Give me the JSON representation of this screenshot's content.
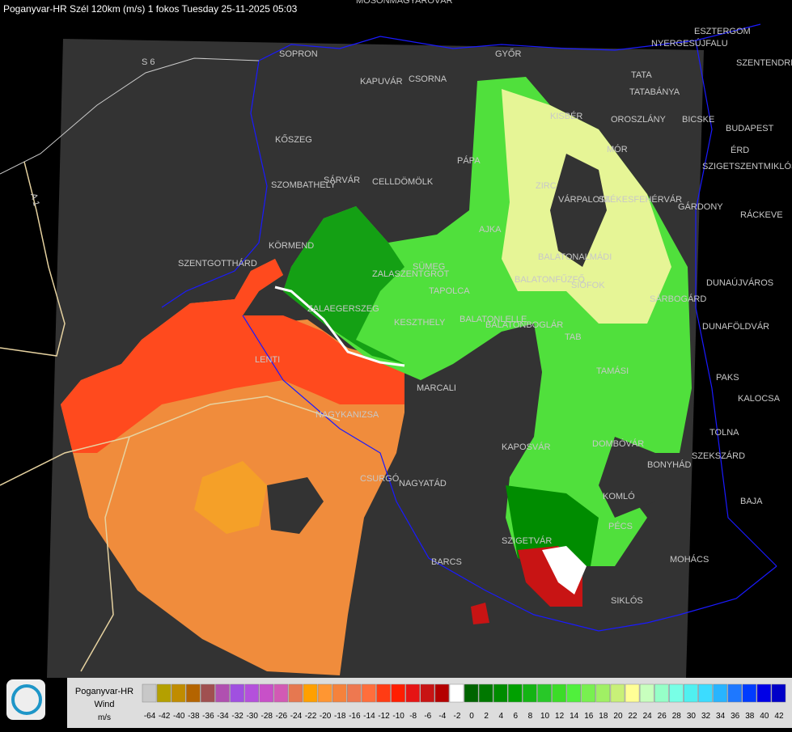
{
  "header": {
    "title": "Poganyvar-HR Szél 120km (m/s) 1 fokos Tuesday 25-11-2025 05:03"
  },
  "roads": [
    "S 6",
    "A 1"
  ],
  "places": [
    "MOSONMAGYARÓVÁR",
    "SOPRON",
    "GYŐR",
    "ESZTERGOM",
    "NYERGESÚJFALU",
    "SZENTENDRE",
    "TATA",
    "TATABÁNYA",
    "KAPUVÁR",
    "CSORNA",
    "KISBÉR",
    "OROSZLÁNY",
    "BICSKE",
    "BUDAPEST",
    "KŐSZEG",
    "MÓR",
    "ÉRD",
    "SZIGETSZENTMIKLÓS",
    "PÁPA",
    "SZOMBATHELY",
    "SÁRVÁR",
    "CELLDÖMÖLK",
    "ZIRC",
    "VÁRPALOTA",
    "SZÉKESFEHÉRVÁR",
    "GÁRDONY",
    "RÁCKEVE",
    "AJKA",
    "KÖRMEND",
    "SZENTGOTTHÁRD",
    "SÜMEG",
    "BALATONALMÁDI",
    "ZALASZENTGRÓT",
    "BALATONFŰZFŐ",
    "SIÓFOK",
    "DUNAÚJVÁROS",
    "TAPOLCA",
    "ZALAEGERSZEG",
    "SÁRBOGÁRD",
    "BALATONLELLE",
    "KESZTHELY",
    "BALATONBOGLÁR",
    "DUNAFÖLDVÁR",
    "TAB",
    "LENTI",
    "TAMÁSI",
    "PAKS",
    "MARCALI",
    "KALOCSA",
    "NAGYKANIZSA",
    "TOLNA",
    "KAPOSVÁR",
    "DOMBÓVÁR",
    "SZEKSZÁRD",
    "BONYHÁD",
    "CSURGÓ",
    "NAGYATÁD",
    "KOMLÓ",
    "BAJA",
    "PÉCS",
    "SZIGETVÁR",
    "MOHÁCS",
    "BARCS",
    "SIKLÓS"
  ],
  "legend": {
    "title": "Poganyvar-HR",
    "label": "Wind",
    "unit": "m/s",
    "items": [
      {
        "value": -64,
        "color": "#c8c8c8"
      },
      {
        "value": -42,
        "color": "#b4a000"
      },
      {
        "value": -40,
        "color": "#c08c00"
      },
      {
        "value": -38,
        "color": "#b46400"
      },
      {
        "value": -36,
        "color": "#a05050"
      },
      {
        "value": -34,
        "color": "#b050b0"
      },
      {
        "value": -32,
        "color": "#a050e0"
      },
      {
        "value": -30,
        "color": "#b450dc"
      },
      {
        "value": -28,
        "color": "#c850c8"
      },
      {
        "value": -26,
        "color": "#d25ab4"
      },
      {
        "value": -24,
        "color": "#e67850"
      },
      {
        "value": -22,
        "color": "#ffa000"
      },
      {
        "value": -20,
        "color": "#ff9632"
      },
      {
        "value": -18,
        "color": "#f5823c"
      },
      {
        "value": -16,
        "color": "#ee7850"
      },
      {
        "value": -14,
        "color": "#ff6e3c"
      },
      {
        "value": -12,
        "color": "#ff3c14"
      },
      {
        "value": -10,
        "color": "#ff1e00"
      },
      {
        "value": -8,
        "color": "#e61414"
      },
      {
        "value": -6,
        "color": "#c81414"
      },
      {
        "value": -4,
        "color": "#b40000"
      },
      {
        "value": -2,
        "color": "#ffffff"
      },
      {
        "value": 0,
        "color": "#006400"
      },
      {
        "value": 2,
        "color": "#007800"
      },
      {
        "value": 4,
        "color": "#008c00"
      },
      {
        "value": 6,
        "color": "#00a000"
      },
      {
        "value": 8,
        "color": "#14b414"
      },
      {
        "value": 10,
        "color": "#28c828"
      },
      {
        "value": 12,
        "color": "#3cdc28"
      },
      {
        "value": 14,
        "color": "#50f03c"
      },
      {
        "value": 16,
        "color": "#78f050"
      },
      {
        "value": 18,
        "color": "#a0f064"
      },
      {
        "value": 20,
        "color": "#c8f078"
      },
      {
        "value": 22,
        "color": "#ffff96"
      },
      {
        "value": 24,
        "color": "#c8ffbe"
      },
      {
        "value": 26,
        "color": "#96ffc8"
      },
      {
        "value": 28,
        "color": "#78ffe6"
      },
      {
        "value": 30,
        "color": "#50f0f0"
      },
      {
        "value": 32,
        "color": "#3cdcff"
      },
      {
        "value": 34,
        "color": "#28b4ff"
      },
      {
        "value": 36,
        "color": "#1e78ff"
      },
      {
        "value": 38,
        "color": "#003cff"
      },
      {
        "value": 40,
        "color": "#0000e6"
      },
      {
        "value": 42,
        "color": "#0000c8"
      }
    ]
  }
}
